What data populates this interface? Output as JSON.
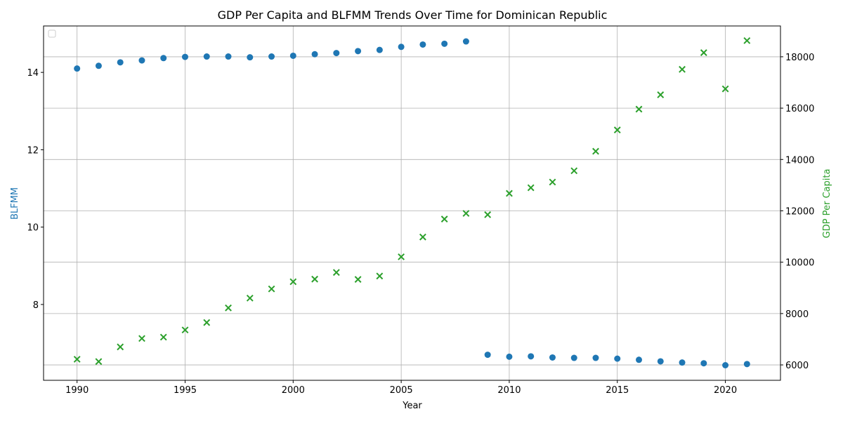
{
  "chart_data": {
    "type": "scatter",
    "title": "GDP Per Capita and BLFMM Trends Over Time for Dominican Republic",
    "xlabel": "Year",
    "ylabel_left": "BLFMM",
    "ylabel_right": "GDP Per Capita",
    "xlim": [
      1988.45,
      2022.55
    ],
    "ylim_left": [
      6.04,
      15.2
    ],
    "ylim_right": [
      5400,
      19200
    ],
    "x_ticks": [
      1990,
      1995,
      2000,
      2005,
      2010,
      2015,
      2020
    ],
    "y_ticks_left": [
      8,
      10,
      12,
      14
    ],
    "y_ticks_right": [
      6000,
      8000,
      10000,
      12000,
      14000,
      16000,
      18000
    ],
    "grid": true,
    "legend": "top-left, empty",
    "series": [
      {
        "axis": "left",
        "marker": "circle",
        "color": "#1f77b4",
        "x": [
          1990,
          1991,
          1992,
          1993,
          1994,
          1995,
          1996,
          1997,
          1998,
          1999,
          2000,
          2001,
          2002,
          2003,
          2004,
          2005,
          2006,
          2007,
          2008,
          2009,
          2010,
          2011,
          2012,
          2013,
          2014,
          2015,
          2016,
          2017,
          2018,
          2019,
          2020,
          2021
        ],
        "values": [
          14.1,
          14.17,
          14.26,
          14.31,
          14.37,
          14.4,
          14.41,
          14.41,
          14.39,
          14.41,
          14.43,
          14.47,
          14.5,
          14.55,
          14.58,
          14.66,
          14.72,
          14.74,
          14.8,
          6.7,
          6.65,
          6.66,
          6.63,
          6.62,
          6.62,
          6.6,
          6.57,
          6.53,
          6.5,
          6.48,
          6.43,
          6.46
        ]
      },
      {
        "axis": "right",
        "marker": "x",
        "color": "#2ca02c",
        "x": [
          1990,
          1991,
          1992,
          1993,
          1994,
          1995,
          1996,
          1997,
          1998,
          1999,
          2000,
          2001,
          2002,
          2003,
          2004,
          2005,
          2006,
          2007,
          2008,
          2009,
          2010,
          2011,
          2012,
          2013,
          2014,
          2015,
          2016,
          2017,
          2018,
          2019,
          2020,
          2021
        ],
        "values": [
          6220,
          6130,
          6700,
          7030,
          7080,
          7360,
          7650,
          8220,
          8600,
          8960,
          9240,
          9340,
          9600,
          9330,
          9460,
          10210,
          10980,
          11680,
          11900,
          11850,
          12680,
          12900,
          13120,
          13560,
          14320,
          15150,
          15960,
          16520,
          17510,
          18160,
          16750,
          18630
        ]
      }
    ]
  }
}
